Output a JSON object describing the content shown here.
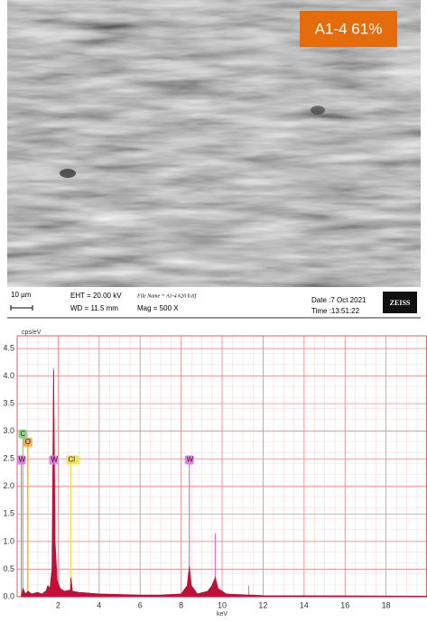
{
  "micrograph": {
    "badge": "A1-4 61%",
    "scale_bar": "10 µm",
    "eht": "EHT = 20.00 kV",
    "wd": "WD = 11.5 mm",
    "file_name": "File Name = A1-4 620 b.tif",
    "mag": "Mag =   500 X",
    "date": "Date :7 Oct 2021",
    "time": "Time :13:51:22",
    "brand": "ZEISS"
  },
  "chart_data": {
    "type": "area",
    "y_label": "cps/eV",
    "x_label": "keV",
    "xlim": [
      0,
      20
    ],
    "ylim": [
      0,
      4.73
    ],
    "xticks": [
      2,
      4,
      6,
      8,
      10,
      12,
      14,
      16,
      18
    ],
    "yticks": [
      {
        "value": 0,
        "label": "0.0"
      },
      {
        "value": 0.5,
        "label": "0.5"
      },
      {
        "value": 1,
        "label": "1.0"
      },
      {
        "value": 1.5,
        "label": "1.5"
      },
      {
        "value": 2,
        "label": "2.0"
      },
      {
        "value": 2.5,
        "label": "2.5"
      },
      {
        "value": 3,
        "label": "3.0"
      },
      {
        "value": 3.5,
        "label": "3.5"
      },
      {
        "value": 4,
        "label": "4.0"
      },
      {
        "value": 4.5,
        "label": "4.5"
      }
    ],
    "grid": true,
    "grid_color": "#e88",
    "spectrum": {
      "color": "#c0103a",
      "x": [
        0.2,
        0.28,
        0.4,
        0.53,
        0.7,
        1.0,
        1.2,
        1.4,
        1.5,
        1.6,
        1.7,
        1.78,
        1.85,
        1.95,
        2.1,
        2.3,
        2.6,
        2.62,
        2.7,
        3.0,
        4.0,
        6.0,
        7.0,
        8.0,
        8.3,
        8.4,
        8.5,
        8.8,
        9.3,
        9.5,
        9.67,
        9.8,
        10.0,
        10.2,
        11.3,
        11.5,
        12.0,
        20.0
      ],
      "values": [
        0.0,
        0.15,
        0.05,
        0.1,
        0.05,
        0.08,
        0.05,
        0.1,
        0.2,
        0.15,
        0.5,
        4.1,
        1.0,
        0.3,
        0.15,
        0.1,
        0.12,
        0.35,
        0.1,
        0.08,
        0.05,
        0.03,
        0.03,
        0.05,
        0.2,
        0.55,
        0.2,
        0.05,
        0.1,
        0.2,
        0.35,
        0.15,
        0.1,
        0.05,
        0.03,
        0.03,
        0.02,
        0.01
      ]
    },
    "markers": [
      {
        "label": "C",
        "x": 0.28,
        "y": 2.95,
        "color": "#7fd07f"
      },
      {
        "label": "O",
        "x": 0.52,
        "y": 2.8,
        "color": "#f0a040"
      },
      {
        "label": "W",
        "x": 0.2,
        "y": 2.48,
        "color": "#e070e0"
      },
      {
        "label": "W",
        "x": 1.78,
        "y": 2.48,
        "color": "#e070e0"
      },
      {
        "label": "Cl",
        "x": 2.62,
        "y": 2.48,
        "color": "#f0e040"
      },
      {
        "label": "W",
        "x": 8.4,
        "y": 2.48,
        "color": "#e070e0"
      }
    ],
    "lines": {
      "color": "#e070e0",
      "x": [
        1.78,
        9.67,
        11.3
      ],
      "values": [
        4.15,
        1.15,
        0.2
      ]
    }
  }
}
